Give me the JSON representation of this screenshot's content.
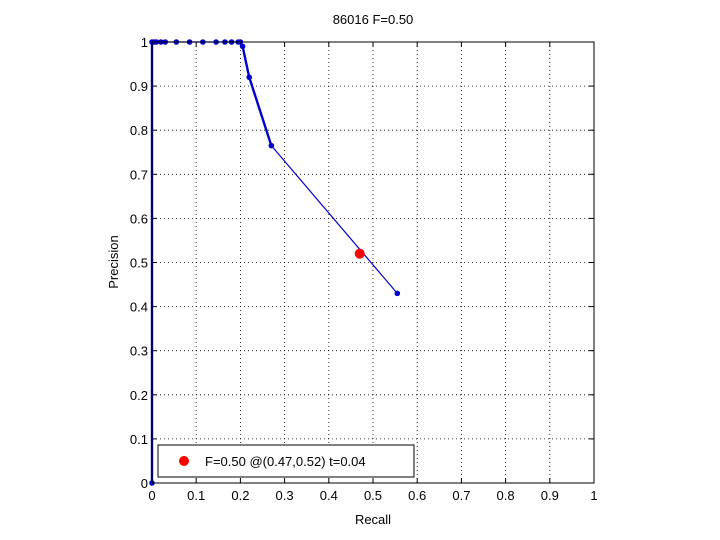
{
  "chart_data": {
    "type": "line",
    "title": "86016 F=0.50",
    "xlabel": "Recall",
    "ylabel": "Precision",
    "xlim": [
      0,
      1
    ],
    "ylim": [
      0,
      1
    ],
    "xticks": [
      "0",
      "0.1",
      "0.2",
      "0.3",
      "0.4",
      "0.5",
      "0.6",
      "0.7",
      "0.8",
      "0.9",
      "1"
    ],
    "yticks": [
      "0",
      "0.1",
      "0.2",
      "0.3",
      "0.4",
      "0.5",
      "0.6",
      "0.7",
      "0.8",
      "0.9",
      "1"
    ],
    "grid": true,
    "series": [
      {
        "color": "#0000cc",
        "x": [
          0.0,
          0.0,
          0.005,
          0.01,
          0.02,
          0.03,
          0.055,
          0.085,
          0.115,
          0.145,
          0.165,
          0.18,
          0.195,
          0.2,
          0.205,
          0.22,
          0.27,
          0.555
        ],
        "y": [
          0.0,
          1.0,
          1.0,
          1.0,
          1.0,
          1.0,
          1.0,
          1.0,
          1.0,
          1.0,
          1.0,
          1.0,
          1.0,
          1.0,
          0.99,
          0.92,
          0.765,
          0.43
        ]
      }
    ],
    "marker": {
      "x": 0.47,
      "y": 0.52,
      "color": "#ff0000"
    },
    "legend": {
      "placement": "bottom-left",
      "text": "F=0.50 @(0.47,0.52) t=0.04"
    }
  }
}
